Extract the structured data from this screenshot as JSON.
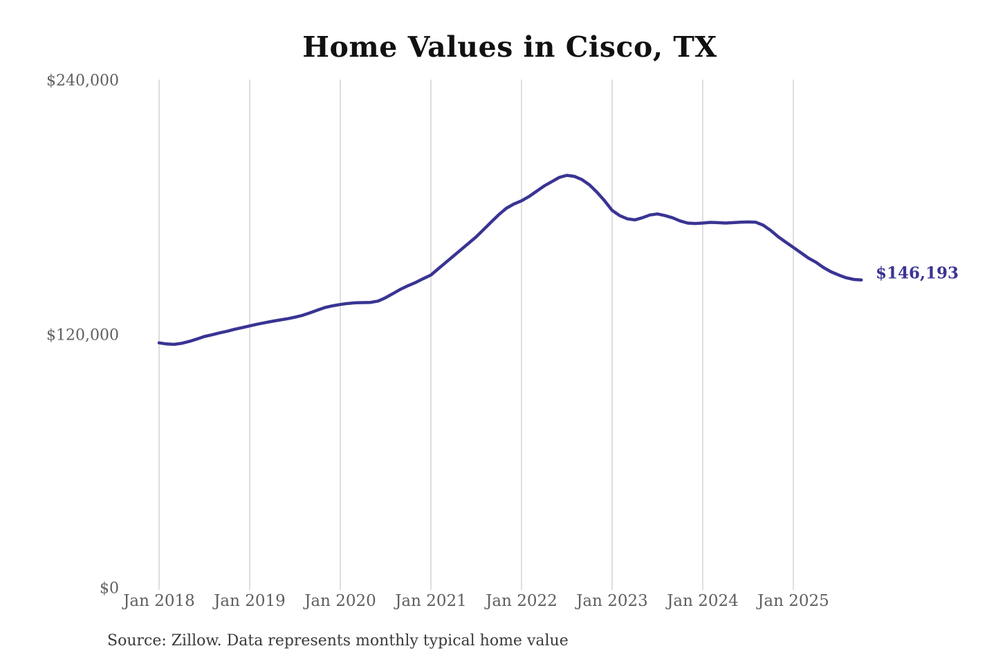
{
  "title": "Home Values in Cisco, TX",
  "colors": {
    "background": "#ffffff",
    "line": "#3a3493",
    "grid": "#cccccc",
    "axis_text": "#5f5f5f",
    "title_text": "#111111",
    "source_text": "#3a3a3a",
    "end_label_text": "#3a3493"
  },
  "chart_data": {
    "type": "line",
    "title": "Home Values in Cisco, TX",
    "source_note": "Source: Zillow. Data represents monthly typical home value",
    "end_annotation": "$146,193",
    "x_tick_labels": [
      "Jan 2018",
      "Jan 2019",
      "Jan 2020",
      "Jan 2021",
      "Jan 2022",
      "Jan 2023",
      "Jan 2024",
      "Jan 2025"
    ],
    "y_tick_labels": [
      "$240,000",
      "$120,000",
      "$0"
    ],
    "ylim": [
      0,
      240000
    ],
    "grid": "vertical-only",
    "legend": "none",
    "x_start": "2018-01",
    "x_frequency": "monthly",
    "series": [
      {
        "name": "Typical home value",
        "final_value": 146193,
        "values": [
          116500,
          116000,
          115800,
          116300,
          117200,
          118300,
          119500,
          120300,
          121200,
          122000,
          122900,
          123700,
          124500,
          125300,
          126000,
          126700,
          127300,
          127900,
          128600,
          129500,
          130700,
          132000,
          133200,
          134000,
          134600,
          135100,
          135400,
          135500,
          135600,
          136200,
          137800,
          139800,
          141800,
          143500,
          145000,
          146800,
          148500,
          151500,
          154500,
          157500,
          160500,
          163500,
          166500,
          170000,
          173500,
          177000,
          180000,
          182000,
          183500,
          185500,
          188000,
          190500,
          192500,
          194500,
          195500,
          195000,
          193500,
          191000,
          187500,
          183500,
          179000,
          176500,
          175000,
          174500,
          175500,
          176800,
          177300,
          176500,
          175500,
          174000,
          173000,
          172800,
          173000,
          173300,
          173200,
          173000,
          173200,
          173400,
          173500,
          173400,
          172000,
          169500,
          166500,
          164000,
          161500,
          159000,
          156500,
          154500,
          152000,
          150000,
          148500,
          147200,
          146400,
          146193
        ]
      }
    ]
  }
}
